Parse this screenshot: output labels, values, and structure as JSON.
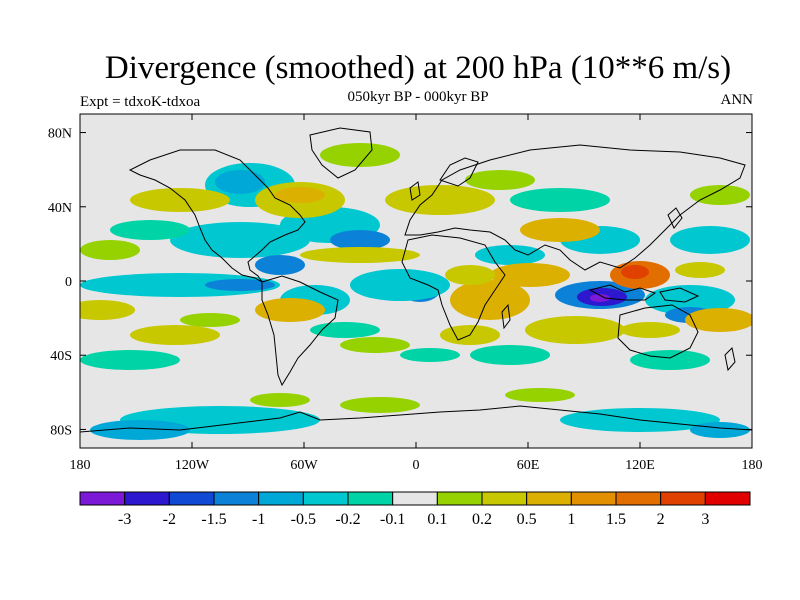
{
  "title": "Divergence (smoothed) at 200 hPa (10**6 m/s)",
  "subtitle": "050kyr BP - 000kyr BP",
  "experiment": "Expt = tdxoK-tdxoa",
  "season": "ANN",
  "map": {
    "projection": "cylindrical-equidistant",
    "lon_range": [
      -180,
      180
    ],
    "lat_range": [
      -90,
      90
    ],
    "lat_ticks": [
      {
        "lat": 80,
        "label": "80N"
      },
      {
        "lat": 40,
        "label": "40N"
      },
      {
        "lat": 0,
        "label": "0"
      },
      {
        "lat": -40,
        "label": "40S"
      },
      {
        "lat": -80,
        "label": "80S"
      }
    ],
    "lon_ticks": [
      {
        "lon": -180,
        "label": "180"
      },
      {
        "lon": -120,
        "label": "120W"
      },
      {
        "lon": -60,
        "label": "60W"
      },
      {
        "lon": 0,
        "label": "0"
      },
      {
        "lon": 60,
        "label": "60E"
      },
      {
        "lon": 120,
        "label": "120E"
      },
      {
        "lon": 180,
        "label": "180"
      }
    ],
    "background_color": "#e6e6e6"
  },
  "colorbar": {
    "colors": [
      "#7b19d6",
      "#2d17cf",
      "#0f49d4",
      "#0b82d8",
      "#00a8d8",
      "#00c7d0",
      "#00d3a5",
      "#e6e6e6",
      "#96d200",
      "#c8c800",
      "#dcb000",
      "#e29000",
      "#e26e00",
      "#e04000",
      "#e00000"
    ],
    "labels": [
      "-3",
      "-2",
      "-1.5",
      "-1",
      "-0.5",
      "-0.2",
      "-0.1",
      "0.1",
      "0.2",
      "0.5",
      "1",
      "1.5",
      "2",
      "3"
    ]
  }
}
